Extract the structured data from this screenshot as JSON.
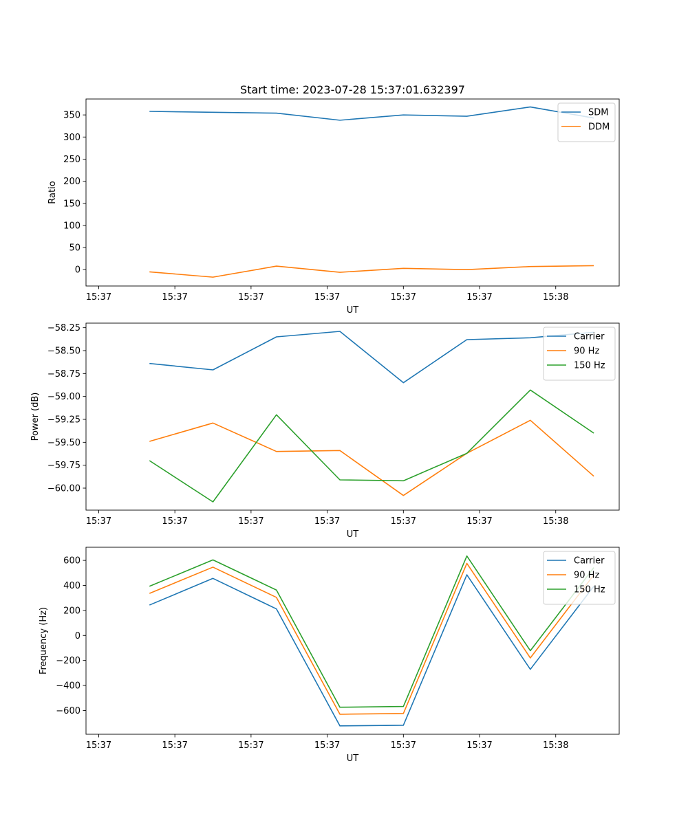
{
  "figure": {
    "title": "Start time: 2023-07-28 15:37:01.632397"
  },
  "colors": {
    "blue": "#1f77b4",
    "orange": "#ff7f0e",
    "green": "#2ca02c"
  },
  "chart_data": [
    {
      "type": "line",
      "title": "Start time: 2023-07-28 15:37:01.632397",
      "xlabel": "UT",
      "ylabel": "Ratio",
      "x": [
        1,
        2,
        3,
        4,
        5,
        6,
        7,
        8
      ],
      "x_ticks": [
        {
          "value": 0.2,
          "label": "15:37"
        },
        {
          "value": 1.4,
          "label": "15:37"
        },
        {
          "value": 2.6,
          "label": "15:37"
        },
        {
          "value": 3.8,
          "label": "15:37"
        },
        {
          "value": 5.0,
          "label": "15:37"
        },
        {
          "value": 6.2,
          "label": "15:37"
        },
        {
          "value": 7.4,
          "label": "15:38"
        }
      ],
      "xlim": [
        0,
        8.4
      ],
      "ylim": [
        -37,
        386
      ],
      "y_ticks": [
        0,
        50,
        100,
        150,
        200,
        250,
        300,
        350
      ],
      "legend": "top-right",
      "grid": false,
      "series": [
        {
          "name": "SDM",
          "color": "#1f77b4",
          "values": [
            358,
            356,
            354,
            338,
            350,
            347,
            368,
            343
          ]
        },
        {
          "name": "DDM",
          "color": "#ff7f0e",
          "values": [
            -5,
            -17,
            8,
            -6,
            3,
            0,
            7,
            9
          ]
        }
      ]
    },
    {
      "type": "line",
      "xlabel": "UT",
      "ylabel": "Power (dB)",
      "x": [
        1,
        2,
        3,
        4,
        5,
        6,
        7,
        8
      ],
      "x_ticks": [
        {
          "value": 0.2,
          "label": "15:37"
        },
        {
          "value": 1.4,
          "label": "15:37"
        },
        {
          "value": 2.6,
          "label": "15:37"
        },
        {
          "value": 3.8,
          "label": "15:37"
        },
        {
          "value": 5.0,
          "label": "15:37"
        },
        {
          "value": 6.2,
          "label": "15:37"
        },
        {
          "value": 7.4,
          "label": "15:38"
        }
      ],
      "xlim": [
        0,
        8.4
      ],
      "ylim": [
        -60.24,
        -58.2
      ],
      "y_ticks": [
        -60.0,
        -59.75,
        -59.5,
        -59.25,
        -59.0,
        -58.75,
        -58.5,
        -58.25
      ],
      "y_tick_labels": [
        "−60.00",
        "−59.75",
        "−59.50",
        "−59.25",
        "−59.00",
        "−58.75",
        "−58.50",
        "−58.25"
      ],
      "legend": "top-right",
      "grid": false,
      "series": [
        {
          "name": "Carrier",
          "color": "#1f77b4",
          "values": [
            -58.64,
            -58.71,
            -58.35,
            -58.29,
            -58.85,
            -58.38,
            -58.36,
            -58.3
          ]
        },
        {
          "name": "90 Hz",
          "color": "#ff7f0e",
          "values": [
            -59.49,
            -59.29,
            -59.6,
            -59.59,
            -60.08,
            -59.62,
            -59.26,
            -59.87
          ]
        },
        {
          "name": "150 Hz",
          "color": "#2ca02c",
          "values": [
            -59.7,
            -60.15,
            -59.2,
            -59.91,
            -59.92,
            -59.62,
            -58.93,
            -59.4
          ]
        }
      ]
    },
    {
      "type": "line",
      "xlabel": "UT",
      "ylabel": "Frequency (Hz)",
      "x": [
        1,
        2,
        3,
        4,
        5,
        6,
        7,
        8
      ],
      "x_ticks": [
        {
          "value": 0.2,
          "label": "15:37"
        },
        {
          "value": 1.4,
          "label": "15:37"
        },
        {
          "value": 2.6,
          "label": "15:37"
        },
        {
          "value": 3.8,
          "label": "15:37"
        },
        {
          "value": 5.0,
          "label": "15:37"
        },
        {
          "value": 6.2,
          "label": "15:37"
        },
        {
          "value": 7.4,
          "label": "15:38"
        }
      ],
      "xlim": [
        0,
        8.4
      ],
      "ylim": [
        -790,
        705
      ],
      "y_ticks": [
        -600,
        -400,
        -200,
        0,
        200,
        400,
        600
      ],
      "y_tick_labels": [
        "−600",
        "−400",
        "−200",
        "0",
        "200",
        "400",
        "600"
      ],
      "legend": "top-right",
      "grid": false,
      "series": [
        {
          "name": "Carrier",
          "color": "#1f77b4",
          "values": [
            243,
            456,
            212,
            -723,
            -718,
            485,
            -271,
            393
          ]
        },
        {
          "name": "90 Hz",
          "color": "#ff7f0e",
          "values": [
            336,
            546,
            304,
            -630,
            -624,
            576,
            -180,
            484
          ]
        },
        {
          "name": "150 Hz",
          "color": "#2ca02c",
          "values": [
            393,
            604,
            363,
            -574,
            -568,
            635,
            -122,
            542
          ]
        }
      ]
    }
  ]
}
